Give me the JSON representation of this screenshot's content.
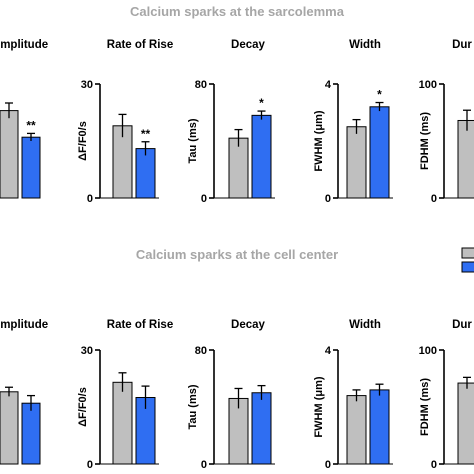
{
  "colors": {
    "ctrl": "#bfbfbf",
    "treat": "#2f6ef2",
    "title_gray": "#a6a6a6"
  },
  "legend": {
    "placement": "right"
  },
  "chart_data": [
    {
      "type": "bar",
      "section_title": "Calcium sparks at the sarcolemma",
      "panels": [
        {
          "key": "amp",
          "title": "Amplitude",
          "ylabel": "",
          "ylim": [
            0,
            3
          ],
          "yticks": [],
          "values": [
            2.3,
            1.6
          ],
          "errors": [
            0.2,
            0.1
          ],
          "sig": "**"
        },
        {
          "key": "rise",
          "title": "Rate of Rise",
          "ylabel": "ΔF/F0/s",
          "ylim": [
            0,
            30
          ],
          "yticks": [
            0,
            30
          ],
          "values": [
            19,
            13
          ],
          "errors": [
            3,
            1.8
          ],
          "sig": "**"
        },
        {
          "key": "decay",
          "title": "Decay",
          "ylabel": "Tau (ms)",
          "ylim": [
            0,
            80
          ],
          "yticks": [
            0,
            80
          ],
          "values": [
            42,
            58
          ],
          "errors": [
            6,
            3
          ],
          "sig": "*"
        },
        {
          "key": "width",
          "title": "Width",
          "ylabel": "FWHM (μm)",
          "ylim": [
            0,
            4
          ],
          "yticks": [
            0,
            4
          ],
          "values": [
            2.5,
            3.2
          ],
          "errors": [
            0.25,
            0.15
          ],
          "sig": "*"
        },
        {
          "key": "dur",
          "title": "Dur",
          "ylabel": "FDHM (ms)",
          "ylim": [
            0,
            100
          ],
          "yticks": [
            0,
            100
          ],
          "values": [
            68,
            null
          ],
          "errors": [
            9,
            null
          ],
          "sig": ""
        }
      ]
    },
    {
      "type": "bar",
      "section_title": "Calcium sparks at the cell center",
      "panels": [
        {
          "key": "amp",
          "title": "Amplitude",
          "ylabel": "",
          "ylim": [
            0,
            3
          ],
          "yticks": [],
          "values": [
            1.9,
            1.6
          ],
          "errors": [
            0.12,
            0.2
          ],
          "sig": ""
        },
        {
          "key": "rise",
          "title": "Rate of Rise",
          "ylabel": "ΔF/F0/s",
          "ylim": [
            0,
            30
          ],
          "yticks": [
            0,
            30
          ],
          "values": [
            21.5,
            17.5
          ],
          "errors": [
            2.5,
            3
          ],
          "sig": ""
        },
        {
          "key": "decay",
          "title": "Decay",
          "ylabel": "Tau (ms)",
          "ylim": [
            0,
            80
          ],
          "yticks": [
            0,
            80
          ],
          "values": [
            46,
            50
          ],
          "errors": [
            7,
            5
          ],
          "sig": ""
        },
        {
          "key": "width",
          "title": "Width",
          "ylabel": "FWHM (μm)",
          "ylim": [
            0,
            4
          ],
          "yticks": [
            0,
            4
          ],
          "values": [
            2.4,
            2.6
          ],
          "errors": [
            0.2,
            0.2
          ],
          "sig": ""
        },
        {
          "key": "dur",
          "title": "Dur",
          "ylabel": "FDHM (ms)",
          "ylim": [
            0,
            100
          ],
          "yticks": [
            0,
            100
          ],
          "values": [
            71,
            null
          ],
          "errors": [
            5,
            null
          ],
          "sig": ""
        }
      ]
    }
  ]
}
